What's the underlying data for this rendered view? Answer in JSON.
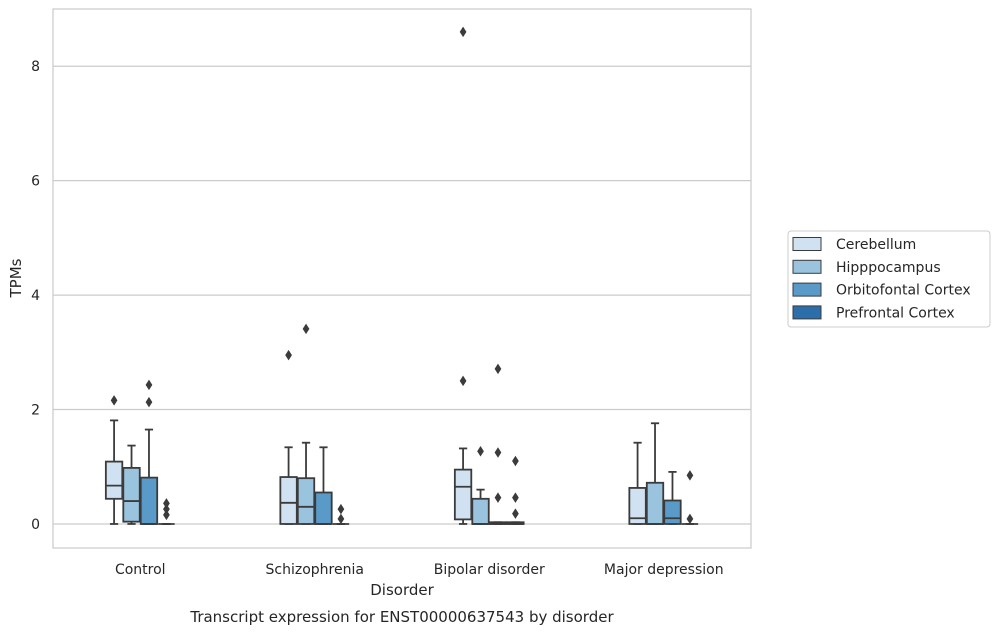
{
  "chart_data": {
    "type": "box",
    "title": "",
    "caption": "Transcript expression for ENST00000637543 by disorder",
    "xlabel": "Disorder",
    "ylabel": "TPMs",
    "ylim": [
      -0.42,
      9.0
    ],
    "yticks": [
      0,
      2,
      4,
      6,
      8
    ],
    "grid": "horizontal",
    "legend_position": "right",
    "categories": [
      "Control",
      "Schizophrenia",
      "Bipolar disorder",
      "Major depression"
    ],
    "series": [
      {
        "name": "Cerebellum",
        "color": "#d0e1f2",
        "boxes": [
          {
            "whisker_low": 0.0,
            "q1": 0.44,
            "median": 0.67,
            "q3": 1.09,
            "whisker_high": 1.81,
            "outliers": [
              2.16
            ]
          },
          {
            "whisker_low": 0.0,
            "q1": 0.0,
            "median": 0.37,
            "q3": 0.82,
            "whisker_high": 1.34,
            "outliers": [
              2.95
            ]
          },
          {
            "whisker_low": 0.0,
            "q1": 0.08,
            "median": 0.65,
            "q3": 0.95,
            "whisker_high": 1.32,
            "outliers": [
              2.5,
              8.6
            ]
          },
          {
            "whisker_low": 0.0,
            "q1": 0.0,
            "median": 0.1,
            "q3": 0.63,
            "whisker_high": 1.42,
            "outliers": []
          }
        ]
      },
      {
        "name": "Hipppocampus",
        "color": "#9ac3dd",
        "boxes": [
          {
            "whisker_low": 0.0,
            "q1": 0.04,
            "median": 0.4,
            "q3": 0.98,
            "whisker_high": 1.37,
            "outliers": []
          },
          {
            "whisker_low": 0.0,
            "q1": 0.0,
            "median": 0.3,
            "q3": 0.8,
            "whisker_high": 1.42,
            "outliers": [
              3.41
            ]
          },
          {
            "whisker_low": 0.0,
            "q1": 0.0,
            "median": 0.0,
            "q3": 0.44,
            "whisker_high": 0.6,
            "outliers": [
              1.27
            ]
          },
          {
            "whisker_low": 0.0,
            "q1": 0.0,
            "median": 0.0,
            "q3": 0.72,
            "whisker_high": 1.76,
            "outliers": []
          }
        ]
      },
      {
        "name": "Orbitofontal Cortex",
        "color": "#5a9ac9",
        "boxes": [
          {
            "whisker_low": 0.0,
            "q1": 0.0,
            "median": 0.0,
            "q3": 0.81,
            "whisker_high": 1.65,
            "outliers": [
              2.13,
              2.43
            ]
          },
          {
            "whisker_low": 0.0,
            "q1": 0.0,
            "median": 0.0,
            "q3": 0.55,
            "whisker_high": 1.34,
            "outliers": []
          },
          {
            "whisker_low": 0.0,
            "q1": 0.0,
            "median": 0.0,
            "q3": 0.03,
            "whisker_high": 0.03,
            "outliers": [
              0.46,
              1.25,
              2.71
            ]
          },
          {
            "whisker_low": 0.0,
            "q1": 0.0,
            "median": 0.1,
            "q3": 0.41,
            "whisker_high": 0.91,
            "outliers": []
          }
        ]
      },
      {
        "name": "Prefrontal Cortex",
        "color": "#2b6ea9",
        "boxes": [
          {
            "whisker_low": 0.0,
            "q1": 0.0,
            "median": 0.0,
            "q3": 0.0,
            "whisker_high": 0.0,
            "outliers": [
              0.16,
              0.26,
              0.36
            ]
          },
          {
            "whisker_low": 0.0,
            "q1": 0.0,
            "median": 0.0,
            "q3": 0.0,
            "whisker_high": 0.0,
            "outliers": [
              0.09,
              0.26
            ]
          },
          {
            "whisker_low": 0.0,
            "q1": 0.0,
            "median": 0.0,
            "q3": 0.03,
            "whisker_high": 0.03,
            "outliers": [
              0.18,
              0.46,
              1.1
            ]
          },
          {
            "whisker_low": 0.0,
            "q1": 0.0,
            "median": 0.0,
            "q3": 0.0,
            "whisker_high": 0.0,
            "outliers": [
              0.09,
              0.85
            ]
          }
        ]
      }
    ]
  }
}
